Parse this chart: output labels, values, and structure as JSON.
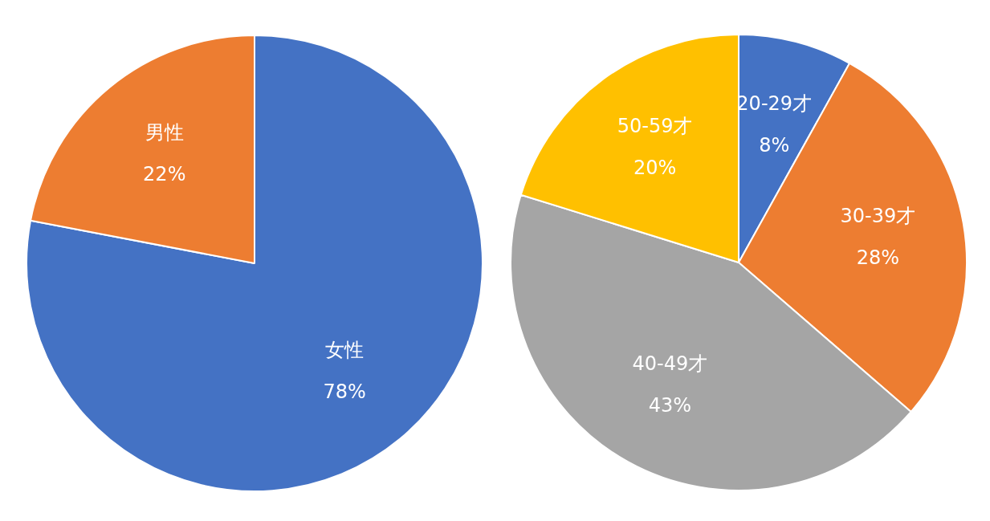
{
  "chart_data": [
    {
      "type": "pie",
      "categories": [
        "女性",
        "男性"
      ],
      "values": [
        78,
        22
      ],
      "colors": [
        "#4472c4",
        "#ed7d31"
      ],
      "value_labels": [
        "78%",
        "22%"
      ]
    },
    {
      "type": "pie",
      "categories": [
        "20-29才",
        "30-39才",
        "40-49才",
        "50-59才"
      ],
      "values": [
        8,
        28,
        43,
        20
      ],
      "colors": [
        "#4472c4",
        "#ed7d31",
        "#a5a5a5",
        "#ffc000"
      ],
      "value_labels": [
        "8%",
        "28%",
        "43%",
        "20%"
      ]
    }
  ]
}
